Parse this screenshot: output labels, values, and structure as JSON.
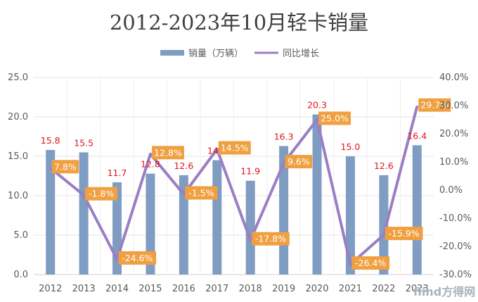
{
  "chart_data": {
    "type": "bar+line",
    "title": "2012-2023年10月轻卡销量",
    "categories": [
      "2012",
      "2013",
      "2014",
      "2015",
      "2016",
      "2017",
      "2018",
      "2019",
      "2020",
      "2021",
      "2022",
      "2023"
    ],
    "series": [
      {
        "name": "销量（万辆）",
        "type": "bar",
        "axis": "left",
        "color": "#7f9cc2",
        "values": [
          15.8,
          15.5,
          11.7,
          12.8,
          12.6,
          14.5,
          11.9,
          16.3,
          20.3,
          15.0,
          12.6,
          16.4
        ],
        "labels": [
          "15.8",
          "15.5",
          "11.7",
          "12.8",
          "12.6",
          "14.5",
          "11.9",
          "16.3",
          "20.3",
          "15.0",
          "12.6",
          "16.4"
        ]
      },
      {
        "name": "同比增长",
        "type": "line",
        "axis": "right",
        "color": "#9b7ec4",
        "values": [
          7.8,
          -1.8,
          -24.6,
          12.8,
          -1.5,
          14.5,
          -17.8,
          9.6,
          25.0,
          -26.4,
          -15.9,
          29.7
        ],
        "labels": [
          "7.8%",
          "-1.8%",
          "-24.6%",
          "12.8%",
          "-1.5%",
          "14.5%",
          "-17.8%",
          "9.6%",
          "25.0%",
          "-26.4%",
          "-15.9%",
          "29.7%"
        ]
      }
    ],
    "left_axis": {
      "min": 0,
      "max": 25,
      "step": 5,
      "ticks": [
        "0.0",
        "5.0",
        "10.0",
        "15.0",
        "20.0",
        "25.0"
      ]
    },
    "right_axis": {
      "min": -30,
      "max": 40,
      "step": 10,
      "ticks": [
        "-30.0%",
        "-20.0%",
        "-10.0%",
        "0.0%",
        "10.0%",
        "20.0%",
        "30.0%",
        "40.0%"
      ]
    },
    "legend_position": "top",
    "label_bg_color": "#f0a040",
    "grid": true
  },
  "watermark": "fiind方得网"
}
